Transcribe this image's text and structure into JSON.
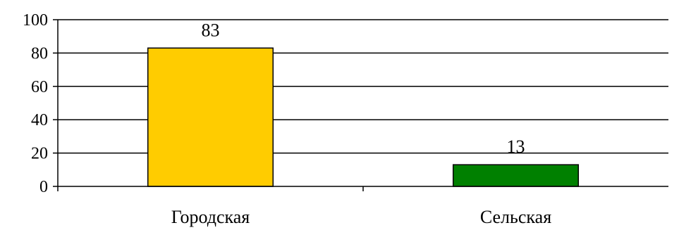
{
  "chart_data": {
    "type": "bar",
    "categories": [
      "Городская",
      "Сельская"
    ],
    "values": [
      83,
      13
    ],
    "colors": [
      "#FFCC00",
      "#008000"
    ],
    "ylim": [
      0,
      100
    ],
    "yticks": [
      0,
      20,
      40,
      60,
      80,
      100
    ],
    "grid": true,
    "data_labels": true,
    "title": "",
    "xlabel": "",
    "ylabel": ""
  }
}
